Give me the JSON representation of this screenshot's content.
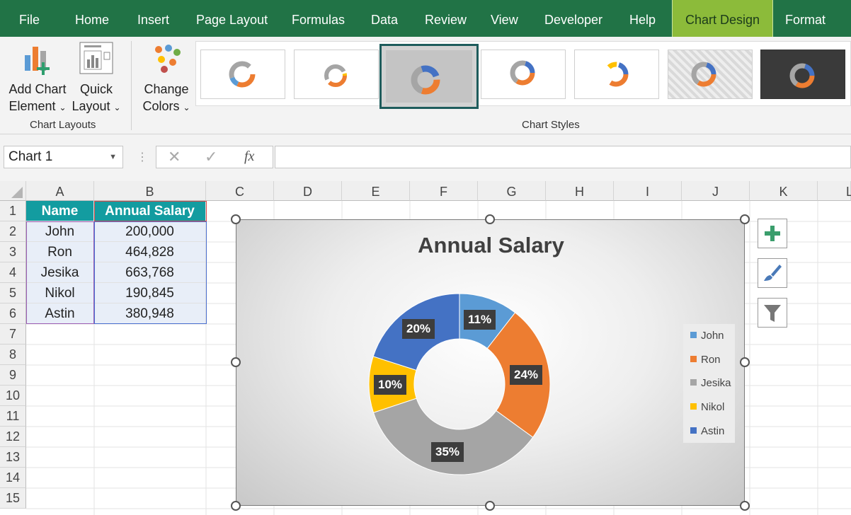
{
  "tabs": [
    "File",
    "Home",
    "Insert",
    "Page Layout",
    "Formulas",
    "Data",
    "Review",
    "View",
    "Developer",
    "Help",
    "Chart Design",
    "Format"
  ],
  "ribbon": {
    "add_chart_element": {
      "line1": "Add Chart",
      "line2": "Element"
    },
    "quick_layout": {
      "line1": "Quick",
      "line2": "Layout"
    },
    "change_colors": {
      "line1": "Change",
      "line2": "Colors"
    },
    "group_chart_layouts": "Chart Layouts",
    "group_chart_styles": "Chart Styles"
  },
  "formula_bar": {
    "name_box": "Chart 1",
    "fx": "fx",
    "value": ""
  },
  "columns": [
    "A",
    "B",
    "C",
    "D",
    "E",
    "F",
    "G",
    "H",
    "I",
    "J",
    "K",
    "L"
  ],
  "rows": [
    "1",
    "2",
    "3",
    "4",
    "5",
    "6",
    "7",
    "8",
    "9",
    "10",
    "11",
    "12",
    "13",
    "14",
    "15"
  ],
  "table": {
    "headers": [
      "Name",
      "Annual Salary"
    ],
    "rows": [
      [
        "John",
        "200,000"
      ],
      [
        "Ron",
        "464,828"
      ],
      [
        "Jesika",
        "663,768"
      ],
      [
        "Nikol",
        "190,845"
      ],
      [
        "Astin",
        "380,948"
      ]
    ]
  },
  "chart_data": {
    "type": "pie",
    "title": "Annual Salary",
    "style": "doughnut",
    "categories": [
      "John",
      "Ron",
      "Jesika",
      "Nikol",
      "Astin"
    ],
    "values": [
      200000,
      464828,
      663768,
      190845,
      380948
    ],
    "labels": [
      "11%",
      "24%",
      "35%",
      "10%",
      "20%"
    ],
    "colors": [
      "#5b9bd5",
      "#ed7d31",
      "#a5a5a5",
      "#ffc000",
      "#4472c4"
    ],
    "legend": "right"
  },
  "colors": {
    "tab_bar": "#217346",
    "active_tab": "#8cbb3a",
    "header_fill": "#139ca0"
  }
}
